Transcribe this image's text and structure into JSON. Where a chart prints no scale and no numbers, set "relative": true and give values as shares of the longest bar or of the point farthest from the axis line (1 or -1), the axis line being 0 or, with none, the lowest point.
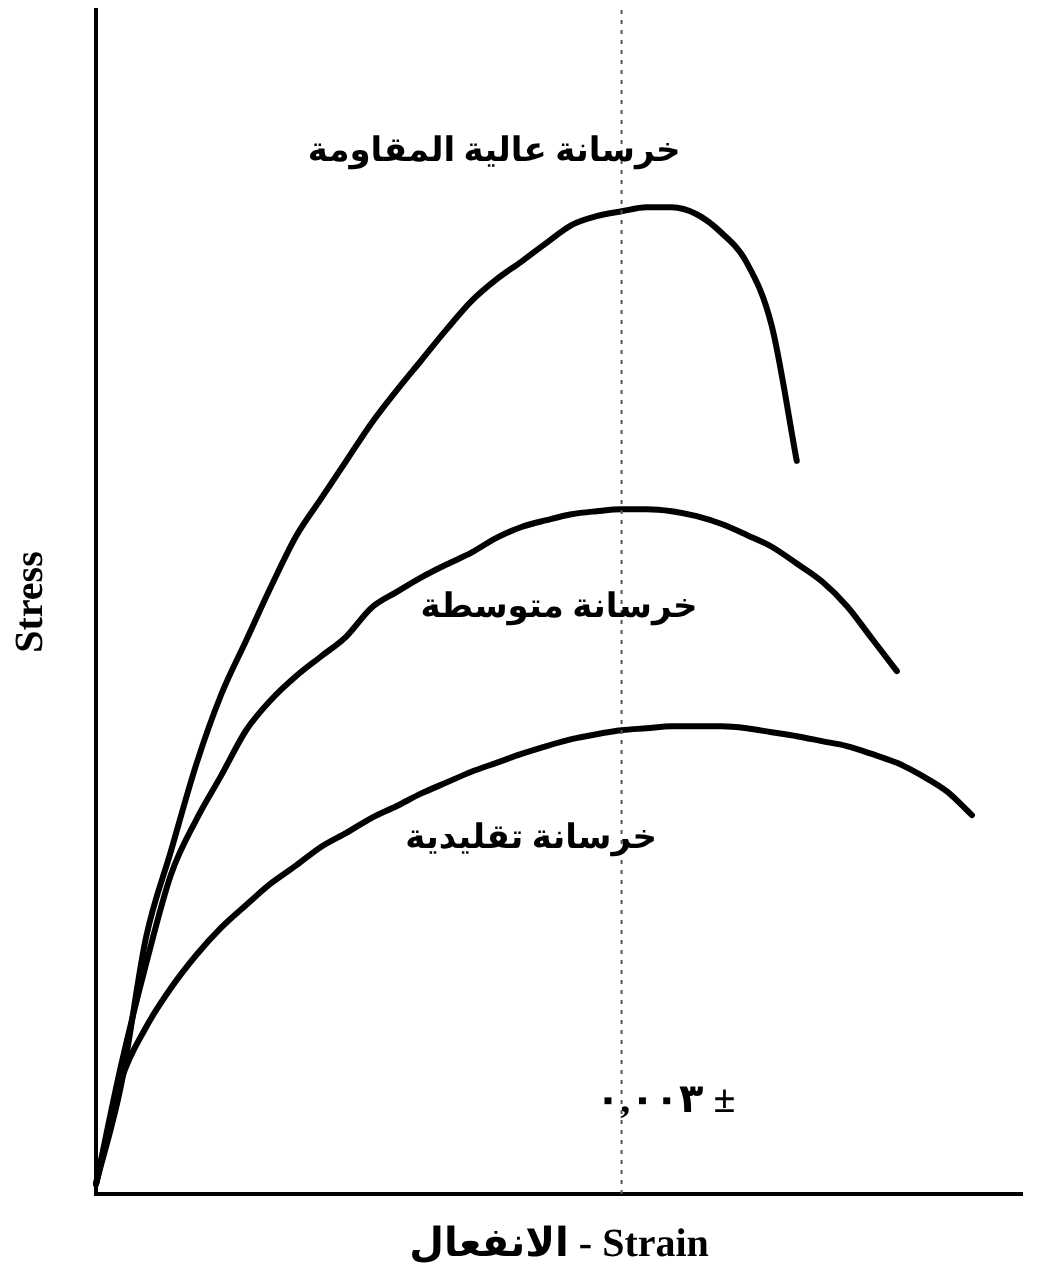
{
  "chart_data": {
    "type": "line",
    "relative": true,
    "xlabel": "الانفعال - Strain",
    "ylabel": "Stress",
    "legend": false,
    "marker": "none",
    "line_style": "solid",
    "categories": [
      null,
      null,
      null,
      null,
      null,
      null,
      null,
      null,
      null,
      null,
      null,
      null,
      null,
      null,
      null,
      null,
      null,
      null,
      null,
      null,
      null,
      null,
      null,
      null,
      null,
      null,
      null,
      null,
      null,
      null,
      null,
      null,
      null,
      null,
      null,
      null,
      null,
      null
    ],
    "series": [
      {
        "name": "خرسانة عالية المقاومة",
        "color": "#000000",
        "values": [
          0.01,
          0.11,
          0.26,
          0.348,
          0.435,
          0.506,
          0.561,
          0.616,
          0.667,
          0.705,
          0.743,
          0.781,
          0.814,
          0.845,
          0.876,
          0.905,
          0.927,
          0.945,
          0.964,
          0.982,
          0.991,
          0.996,
          1,
          1,
          0.993,
          0.974,
          0.944,
          0.88,
          0.743,
          null,
          null,
          null,
          null,
          null,
          null,
          null,
          null,
          null
        ]
      },
      {
        "name": "خرسانة متوسطة",
        "color": "#000000",
        "values": [
          0.01,
          0.13,
          0.233,
          0.324,
          0.379,
          0.424,
          0.47,
          0.501,
          0.525,
          0.545,
          0.565,
          0.594,
          0.61,
          0.625,
          0.638,
          0.65,
          0.665,
          0.676,
          0.683,
          0.689,
          0.692,
          0.694,
          0.694,
          0.692,
          0.687,
          0.679,
          0.668,
          0.656,
          0.639,
          0.621,
          0.596,
          0.563,
          0.53,
          null,
          null,
          null,
          null,
          null
        ]
      },
      {
        "name": "خرسانة تقليدية",
        "color": "#000000",
        "values": [
          0.01,
          0.115,
          0.169,
          0.209,
          0.242,
          0.27,
          0.293,
          0.315,
          0.333,
          0.352,
          0.366,
          0.381,
          0.393,
          0.406,
          0.417,
          0.428,
          0.437,
          0.446,
          0.454,
          0.461,
          0.466,
          0.47,
          0.472,
          0.474,
          0.474,
          0.474,
          0.472,
          0.468,
          0.464,
          0.459,
          0.454,
          0.446,
          0.437,
          0.424,
          0.408,
          0.384,
          null,
          null
        ]
      }
    ],
    "annotations": [
      "٠,٠٠٣ ±"
    ]
  }
}
